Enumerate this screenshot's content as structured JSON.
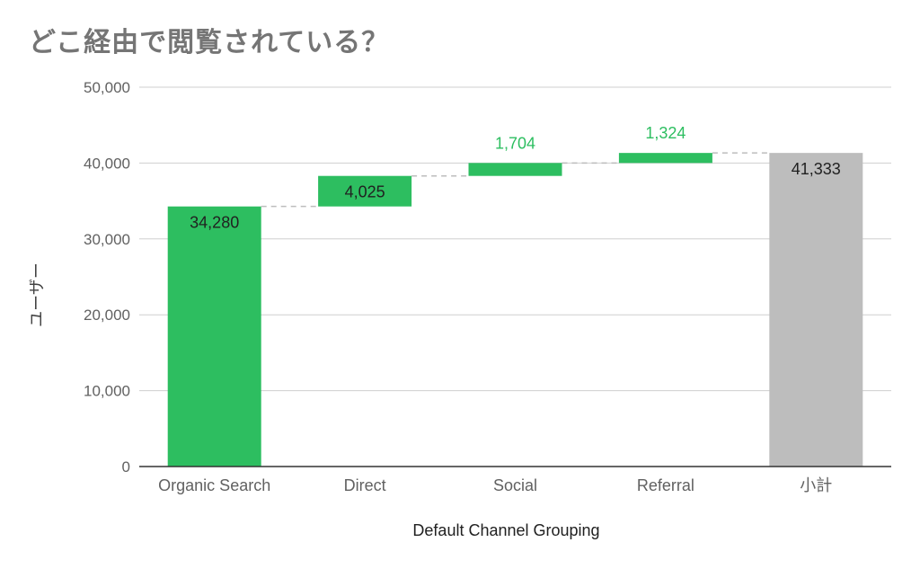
{
  "chart_data": {
    "type": "bar",
    "variant": "waterfall",
    "title": "どこ経由で閲覧されている？",
    "xlabel": "Default Channel Grouping",
    "ylabel": "ユーザー",
    "ylim": [
      0,
      50000
    ],
    "yticks": [
      0,
      10000,
      20000,
      30000,
      40000,
      50000
    ],
    "ytick_labels": [
      "0",
      "10,000",
      "20,000",
      "30,000",
      "40,000",
      "50,000"
    ],
    "categories": [
      "Organic Search",
      "Direct",
      "Social",
      "Referral",
      "小計"
    ],
    "values": [
      34280,
      4025,
      1704,
      1324,
      41333
    ],
    "value_labels": [
      "34,280",
      "4,025",
      "1,704",
      "1,324",
      "41,333"
    ],
    "is_total": [
      false,
      false,
      false,
      false,
      true
    ],
    "grid": true,
    "colors": {
      "increase": "#2dbe60",
      "total": "#bdbdbd",
      "label_outside": "#2dbe60",
      "label_inside": "#212121",
      "connector": "#bdbdbd"
    }
  }
}
